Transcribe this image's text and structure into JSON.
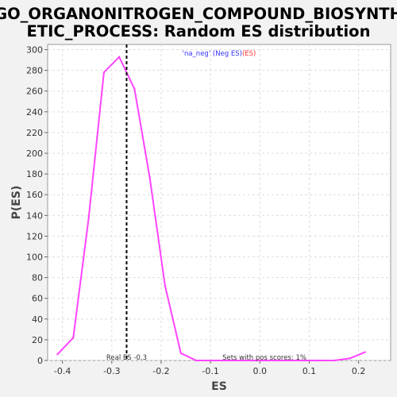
{
  "chart_data": {
    "type": "line",
    "title_lines": [
      "GO_ORGANONITROGEN_COMPOUND_BIOSYNTH",
      "ETIC_PROCESS: Random ES distribution"
    ],
    "xlabel": "ES",
    "ylabel": "P(ES)",
    "xlim": [
      -0.43,
      0.265
    ],
    "ylim": [
      0,
      305
    ],
    "x_ticks": [
      -0.4,
      -0.3,
      -0.2,
      -0.1,
      0.0,
      0.1,
      0.2
    ],
    "x_tick_labels": [
      "-0.4",
      "-0.3",
      "-0.2",
      "-0.1",
      "0.0",
      "0.1",
      "0.2"
    ],
    "y_ticks": [
      0,
      20,
      40,
      60,
      80,
      100,
      120,
      140,
      160,
      180,
      200,
      220,
      240,
      260,
      280,
      300
    ],
    "y_tick_labels": [
      "0",
      "20",
      "40",
      "60",
      "80",
      "100",
      "120",
      "140",
      "160",
      "180",
      "200",
      "220",
      "240",
      "260",
      "280",
      "300"
    ],
    "grid": true,
    "series": [
      {
        "color": "#ff44ff",
        "x": [
          -0.41,
          -0.378,
          -0.347,
          -0.316,
          -0.285,
          -0.254,
          -0.223,
          -0.192,
          -0.16,
          -0.129,
          -0.098,
          -0.067,
          -0.036,
          -0.005,
          0.026,
          0.057,
          0.088,
          0.12,
          0.151,
          0.182,
          0.213
        ],
        "values": [
          6,
          22,
          137,
          278,
          293,
          262,
          176,
          72,
          7,
          0,
          0,
          0,
          0,
          0,
          0,
          0,
          0,
          0,
          0,
          2,
          8
        ]
      }
    ],
    "real_es": {
      "x": -0.27,
      "label": "Real ES -0.3",
      "color": "#000000"
    },
    "annotations": {
      "legend_prefix": "'na_neg'",
      "legend_neg": " (Neg ES)",
      "legend_pos": "(ES)",
      "legend_prefix_color": "#3333ff",
      "legend_neg_color": "#3333ff",
      "legend_pos_color": "#ff3333",
      "pos_scores": "Sets with pos scores: 1%"
    }
  }
}
